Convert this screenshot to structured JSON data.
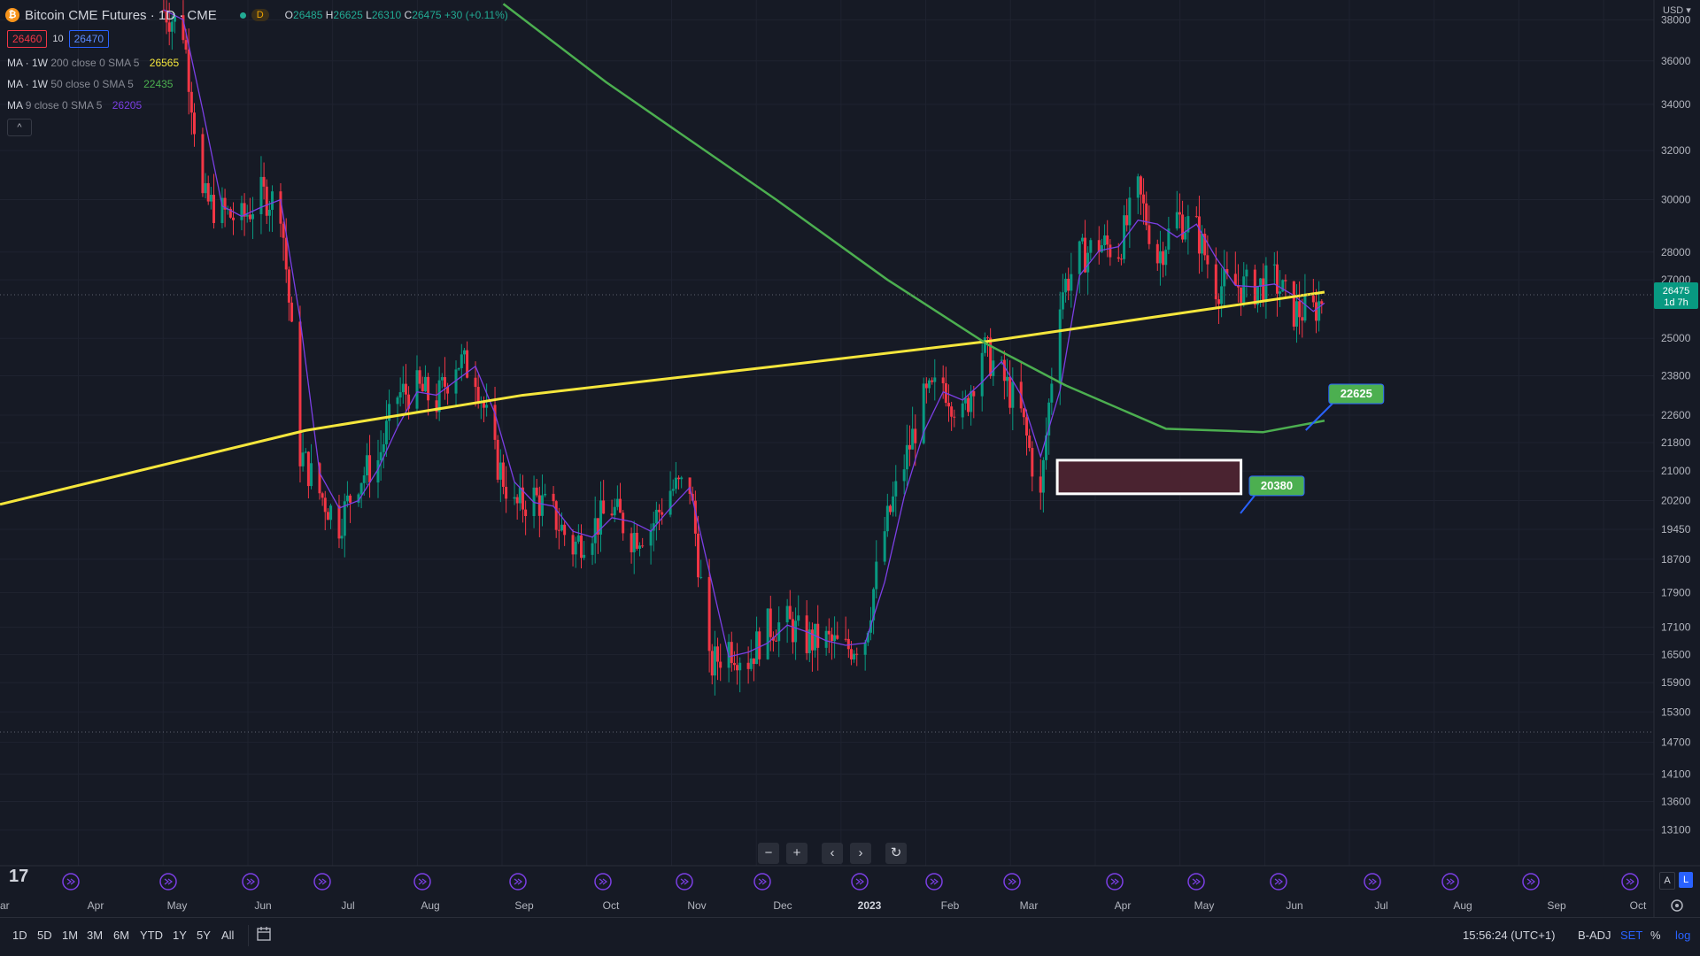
{
  "header": {
    "title": "Bitcoin CME Futures · 1D · CME",
    "logo_letter": "₿",
    "badge": "D",
    "ohlc": {
      "o_label": "O",
      "o": "26485",
      "h_label": "H",
      "h": "26625",
      "l_label": "L",
      "l": "26310",
      "c_label": "C",
      "c": "26475",
      "change": "+30 (+0.11%)"
    }
  },
  "bid_ask": {
    "bid": "26460",
    "spread": "10",
    "ask": "26470"
  },
  "indicators": [
    {
      "name": "MA · 1W",
      "params": "200 close 0 SMA 5",
      "value": "26565",
      "color": "#f5e63c"
    },
    {
      "name": "MA · 1W",
      "params": "50 close 0 SMA 5",
      "value": "22435",
      "color": "#4caf50"
    },
    {
      "name": "MA",
      "params": "9 close 0 SMA 5",
      "value": "26205",
      "color": "#7b3fe4"
    }
  ],
  "collapse_icon": "^",
  "price_axis": {
    "currency": "USD ▾"
  },
  "current_price": {
    "value": "26475",
    "countdown": "1d 7h",
    "color": "#089981"
  },
  "annotations": [
    {
      "label": "22625",
      "color": "#4caf50"
    },
    {
      "label": "20380",
      "color": "#4caf50"
    }
  ],
  "zoom_controls": [
    "−",
    "+",
    "‹",
    "›",
    "↻"
  ],
  "axis_buttons": {
    "auto": "A",
    "log": "L"
  },
  "bottom": {
    "timeframes": [
      "1D",
      "5D",
      "1M",
      "3M",
      "6M",
      "YTD",
      "1Y",
      "5Y",
      "All"
    ],
    "clock": "15:56:24 (UTC+1)",
    "badj": "B-ADJ",
    "set": "SET",
    "percent": "%",
    "log": "log",
    "logo": "17"
  },
  "chart_data": {
    "type": "candlestick",
    "title": "Bitcoin CME Futures · 1D · CME",
    "y_scale": "log",
    "ylim": [
      12500,
      39000
    ],
    "y_ticks": [
      38000,
      36000,
      34000,
      32000,
      30000,
      28000,
      27000,
      25000,
      23800,
      22600,
      21800,
      21000,
      20200,
      19450,
      18700,
      17900,
      17100,
      16500,
      15900,
      15300,
      14700,
      14100,
      13600,
      13100
    ],
    "x_ticks": [
      "ar",
      "Apr",
      "May",
      "Jun",
      "Jul",
      "Aug",
      "Sep",
      "Oct",
      "Nov",
      "Dec",
      "2023",
      "Feb",
      "Mar",
      "Apr",
      "May",
      "Jun",
      "Jul",
      "Aug",
      "Sep",
      "Oct"
    ],
    "price_path": [
      {
        "date": "2022-04-25",
        "close": 38500
      },
      {
        "date": "2022-05-02",
        "close": 37500
      },
      {
        "date": "2022-05-09",
        "close": 30000
      },
      {
        "date": "2022-05-16",
        "close": 29500
      },
      {
        "date": "2022-05-23",
        "close": 29200
      },
      {
        "date": "2022-05-30",
        "close": 30200
      },
      {
        "date": "2022-06-06",
        "close": 29800
      },
      {
        "date": "2022-06-13",
        "close": 21500
      },
      {
        "date": "2022-06-20",
        "close": 20400
      },
      {
        "date": "2022-06-27",
        "close": 19600
      },
      {
        "date": "2022-07-04",
        "close": 20800
      },
      {
        "date": "2022-07-11",
        "close": 21300
      },
      {
        "date": "2022-07-18",
        "close": 23200
      },
      {
        "date": "2022-07-25",
        "close": 23400
      },
      {
        "date": "2022-08-01",
        "close": 23000
      },
      {
        "date": "2022-08-08",
        "close": 24300
      },
      {
        "date": "2022-08-15",
        "close": 23900
      },
      {
        "date": "2022-08-22",
        "close": 21400
      },
      {
        "date": "2022-08-29",
        "close": 20000
      },
      {
        "date": "2022-09-05",
        "close": 20300
      },
      {
        "date": "2022-09-12",
        "close": 19800
      },
      {
        "date": "2022-09-19",
        "close": 19000
      },
      {
        "date": "2022-09-26",
        "close": 19500
      },
      {
        "date": "2022-10-03",
        "close": 20000
      },
      {
        "date": "2022-10-10",
        "close": 19300
      },
      {
        "date": "2022-10-17",
        "close": 19500
      },
      {
        "date": "2022-10-24",
        "close": 20500
      },
      {
        "date": "2022-10-31",
        "close": 20600
      },
      {
        "date": "2022-11-07",
        "close": 16200
      },
      {
        "date": "2022-11-14",
        "close": 16700
      },
      {
        "date": "2022-11-21",
        "close": 16400
      },
      {
        "date": "2022-11-28",
        "close": 17100
      },
      {
        "date": "2022-12-05",
        "close": 17200
      },
      {
        "date": "2022-12-12",
        "close": 16800
      },
      {
        "date": "2022-12-19",
        "close": 16800
      },
      {
        "date": "2022-12-26",
        "close": 16600
      },
      {
        "date": "2023-01-02",
        "close": 16900
      },
      {
        "date": "2023-01-09",
        "close": 19400
      },
      {
        "date": "2023-01-16",
        "close": 21200
      },
      {
        "date": "2023-01-23",
        "close": 23000
      },
      {
        "date": "2023-01-30",
        "close": 23600
      },
      {
        "date": "2023-02-06",
        "close": 22500
      },
      {
        "date": "2023-02-13",
        "close": 24700
      },
      {
        "date": "2023-02-20",
        "close": 23800
      },
      {
        "date": "2023-02-27",
        "close": 22600
      },
      {
        "date": "2023-03-06",
        "close": 20200
      },
      {
        "date": "2023-03-13",
        "close": 26500
      },
      {
        "date": "2023-03-20",
        "close": 27800
      },
      {
        "date": "2023-03-27",
        "close": 28300
      },
      {
        "date": "2023-04-03",
        "close": 28100
      },
      {
        "date": "2023-04-10",
        "close": 30300
      },
      {
        "date": "2023-04-17",
        "close": 27800
      },
      {
        "date": "2023-04-24",
        "close": 29300
      },
      {
        "date": "2023-05-01",
        "close": 28800
      },
      {
        "date": "2023-05-08",
        "close": 26800
      },
      {
        "date": "2023-05-15",
        "close": 26800
      },
      {
        "date": "2023-05-22",
        "close": 26700
      },
      {
        "date": "2023-05-29",
        "close": 27000
      },
      {
        "date": "2023-06-05",
        "close": 25900
      },
      {
        "date": "2023-06-12",
        "close": 25900
      },
      {
        "date": "2023-06-16",
        "close": 26475
      }
    ],
    "series": [
      {
        "name": "MA · 1W 200 close 0 SMA 5",
        "points": [
          {
            "date": "2022-03-28",
            "value": 20100
          },
          {
            "date": "2022-06-15",
            "value": 22150
          },
          {
            "date": "2022-09-01",
            "value": 23200
          },
          {
            "date": "2022-12-01",
            "value": 24100
          },
          {
            "date": "2023-02-15",
            "value": 24900
          },
          {
            "date": "2023-06-16",
            "value": 26565
          }
        ]
      },
      {
        "name": "MA · 1W 50 close 0 SMA 5",
        "points": [
          {
            "date": "2022-08-25",
            "value": 38800
          },
          {
            "date": "2022-10-01",
            "value": 35000
          },
          {
            "date": "2022-12-01",
            "value": 30000
          },
          {
            "date": "2023-01-10",
            "value": 27000
          },
          {
            "date": "2023-02-15",
            "value": 24800
          },
          {
            "date": "2023-03-15",
            "value": 23500
          },
          {
            "date": "2023-04-20",
            "value": 22200
          },
          {
            "date": "2023-05-25",
            "value": 22100
          },
          {
            "date": "2023-06-16",
            "value": 22435
          }
        ]
      }
    ],
    "current_price": 26475,
    "horizontal_lines": [
      26475,
      14900
    ],
    "zone": {
      "from_date": "2023-03-12",
      "to_date": "2023-05-17",
      "low": 20380,
      "high": 21300
    },
    "labels": [
      {
        "date": "2023-06-15",
        "value": 22625
      },
      {
        "date": "2023-05-10",
        "value": 20380
      }
    ],
    "grid": true
  }
}
